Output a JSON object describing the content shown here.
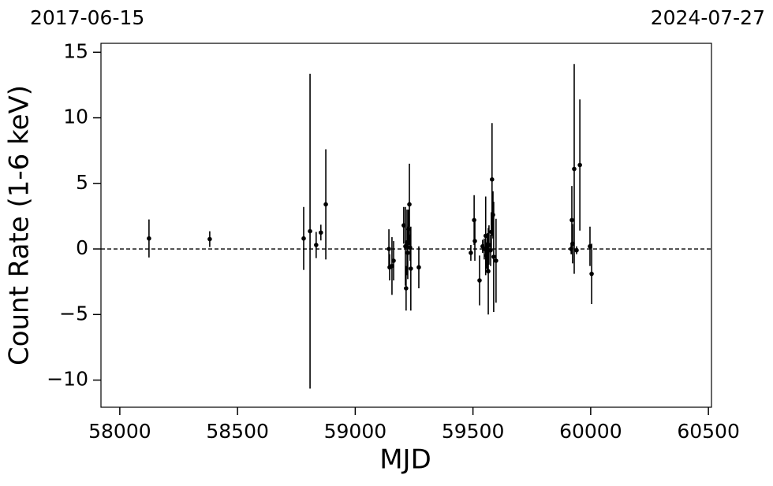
{
  "chart_data": {
    "type": "errorbar",
    "xlabel": "MJD",
    "ylabel": "Count Rate (1-6 keV)",
    "top_labels": [
      "2017-06-15",
      "2024-07-27"
    ],
    "xlim": [
      57920,
      60513
    ],
    "ylim": [
      -12.07,
      15.68
    ],
    "xticks": [
      58000,
      58500,
      59000,
      59500,
      60000,
      60500
    ],
    "yticks": [
      {
        "value": -10,
        "label": "−10"
      },
      {
        "value": -5,
        "label": "−5"
      },
      0,
      5,
      10,
      15
    ],
    "hline": 0,
    "color": "#000000",
    "series": [
      {
        "name": "Count Rate",
        "x": [
          58124,
          58382,
          58781,
          58808,
          58834,
          58854,
          58875,
          59143,
          59146,
          59156,
          59163,
          59206,
          59213,
          59216,
          59220,
          59223,
          59226,
          59230,
          59233,
          59236,
          59270,
          59491,
          59505,
          59508,
          59528,
          59541,
          59548,
          59554,
          59558,
          59561,
          59565,
          59568,
          59575,
          59578,
          59581,
          59585,
          59588,
          59598,
          59917,
          59920,
          59923,
          59930,
          59940,
          59954,
          59997,
          60004
        ],
        "values": [
          0.8,
          0.75,
          0.8,
          1.35,
          0.3,
          1.25,
          3.4,
          0,
          -1.4,
          -1.3,
          -0.9,
          1.8,
          0.2,
          -3,
          0.5,
          -0.3,
          1.5,
          3.4,
          0.1,
          -1.5,
          -1.4,
          -0.3,
          2.2,
          0.6,
          -2.4,
          0.2,
          0,
          1,
          -0.5,
          -0.3,
          -1.7,
          0.3,
          -0.1,
          1.3,
          5.3,
          2.6,
          -0.6,
          -0.9,
          0,
          2.2,
          0.4,
          6.1,
          -0.1,
          6.4,
          0.2,
          -1.9
        ],
        "errors": [
          1.45,
          0.6,
          2.4,
          12,
          1,
          0.6,
          4.2,
          1.5,
          1,
          2.2,
          1.5,
          1.4,
          3,
          1.7,
          2.5,
          2,
          1.5,
          3.1,
          1,
          3.2,
          1.6,
          0.6,
          1.9,
          1.5,
          1.9,
          0.5,
          0.8,
          3,
          1,
          1.5,
          3.3,
          1.5,
          1.2,
          1.5,
          4.3,
          1.8,
          4.2,
          3.2,
          0.4,
          2.6,
          1.5,
          8,
          0.3,
          5,
          1.5,
          2.3
        ]
      }
    ]
  }
}
